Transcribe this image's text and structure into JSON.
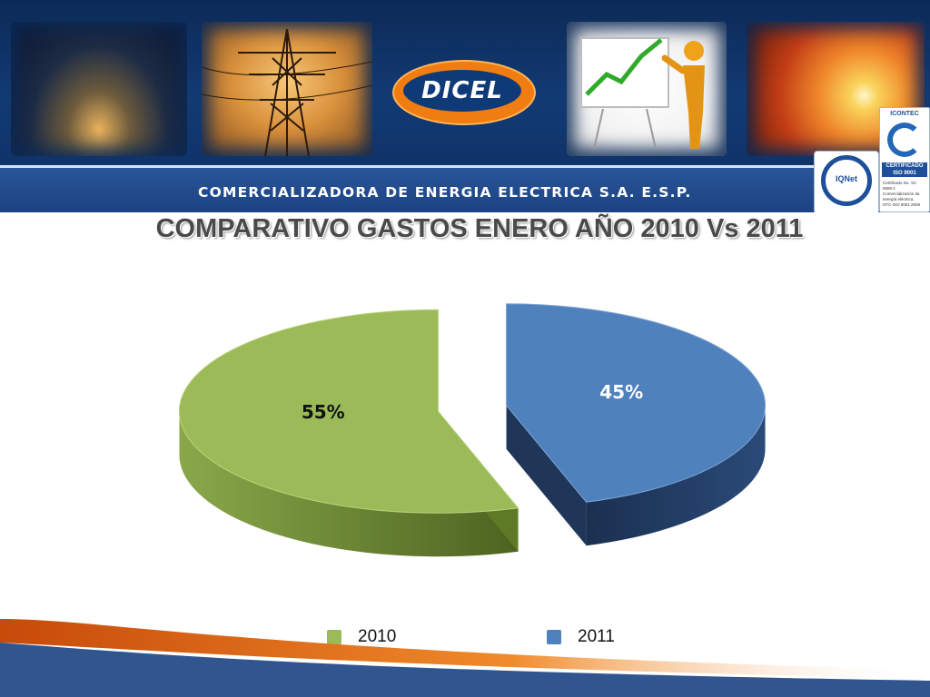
{
  "header": {
    "logo_text": "DICEL",
    "company": "COMERCIALIZADORA DE ENERGIA ELECTRICA S.A. E.S.P.",
    "photos": [
      "city-night-photo",
      "power-tower-photo",
      "growth-chart-presenter-photo",
      "sunset-photo"
    ],
    "certifications": {
      "iqnet": "IQNet",
      "icontec_header": "ICONTEC",
      "icontec_badge": "CERTIFICADO ISO 9001",
      "icontec_lines": [
        "Certificado No. SC 6585-1",
        "Comercialización de energía eléctrica.",
        "NTC-ISO 9001:2008"
      ]
    }
  },
  "slide": {
    "title": "COMPARATIVO GASTOS ENERO AÑO 2010 Vs 2011"
  },
  "colors": {
    "series_2010": "#9bbb59",
    "series_2010_side": "#5e7a26",
    "series_2011": "#4f81bd",
    "series_2011_side": "#1f3658",
    "banner": "#0f3a78",
    "accent_orange": "#f07d12"
  },
  "chart_data": {
    "type": "pie",
    "style": "3d-exploded",
    "categories": [
      "2010",
      "2011"
    ],
    "values": [
      55,
      45
    ],
    "data_labels": [
      "55%",
      "45%"
    ],
    "legend": "bottom"
  }
}
